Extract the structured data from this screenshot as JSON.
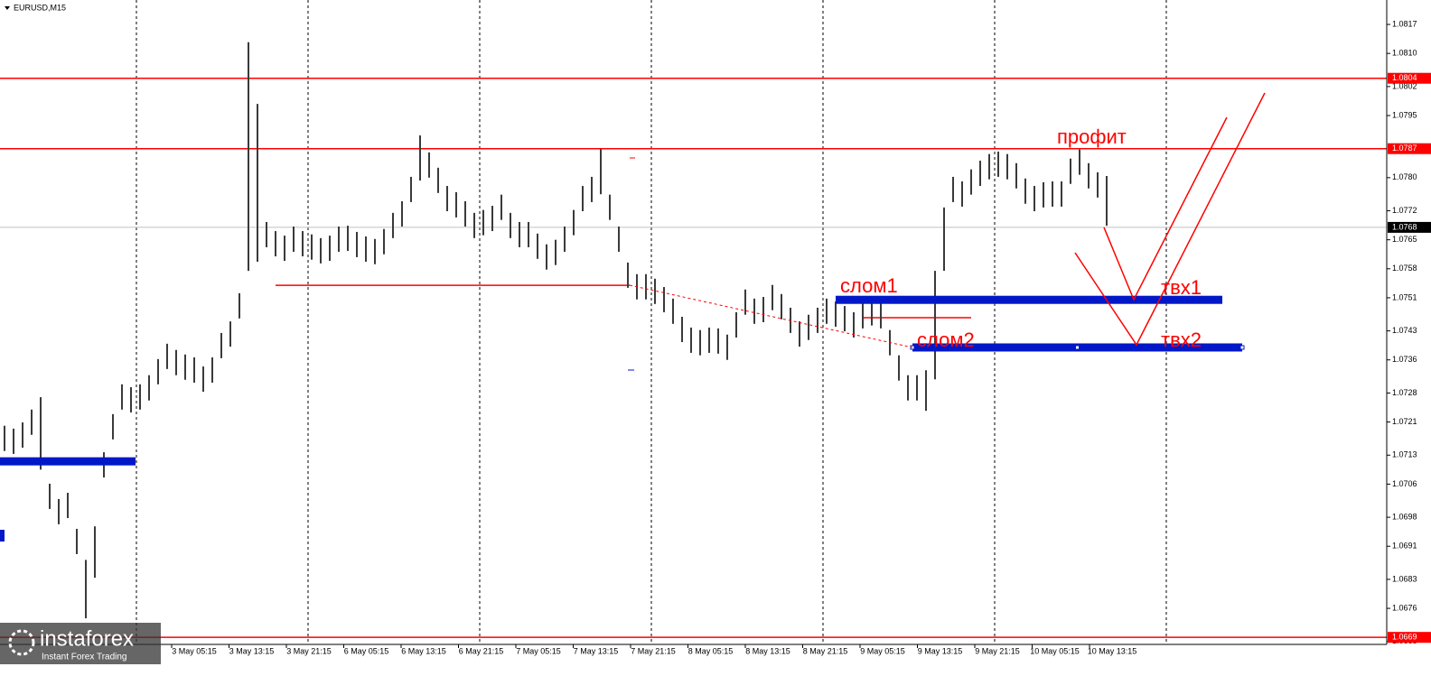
{
  "chart_data": {
    "type": "ohlc",
    "title": "EURUSD,M15",
    "categories": [
      "3 May 05:15",
      "3 May 13:15",
      "3 May 21:15",
      "6 May 05:15",
      "6 May 13:15",
      "6 May 21:15",
      "7 May 05:15",
      "7 May 13:15",
      "7 May 21:15",
      "8 May 05:15",
      "8 May 13:15",
      "8 May 21:15",
      "9 May 05:15",
      "9 May 13:15",
      "9 May 21:15",
      "10 May 05:15",
      "10 May 13:15"
    ],
    "color": "#3a3a3a",
    "highs": [
      1.07201,
      1.07194,
      1.07209,
      1.0724,
      1.0727,
      1.07061,
      1.07024,
      1.07039,
      1.06952,
      1.06877,
      1.06958,
      1.07137,
      1.07229,
      1.07301,
      1.07294,
      1.07301,
      1.07323,
      1.07362,
      1.07399,
      1.07384,
      1.07373,
      1.07366,
      1.07344,
      1.07366,
      1.07425,
      1.07453,
      1.07521,
      1.08127,
      1.07978,
      1.07693,
      1.07671,
      1.0766,
      1.07682,
      1.07671,
      1.07663,
      1.07654,
      1.0766,
      1.07682,
      1.07684,
      1.07669,
      1.07658,
      1.07652,
      1.07676,
      1.07715,
      1.07743,
      1.07802,
      1.07902,
      1.07861,
      1.07824,
      1.0778,
      1.07765,
      1.07743,
      1.07715,
      1.07722,
      1.07732,
      1.07759,
      1.07715,
      1.07693,
      1.07693,
      1.07665,
      1.07639,
      1.0765,
      1.07682,
      1.07722,
      1.0778,
      1.07802,
      1.07869,
      1.07759,
      1.07682,
      1.07595,
      1.07567,
      1.07567,
      1.07556,
      1.07536,
      1.07508,
      1.07464,
      1.07438,
      1.07432,
      1.07438,
      1.07436,
      1.07421,
      1.07475,
      1.0753,
      1.07508,
      1.07512,
      1.07541,
      1.07519,
      1.07486,
      1.07453,
      1.07469,
      1.07486,
      1.07508,
      1.07501,
      1.0749,
      1.07475,
      1.07497,
      1.07504,
      1.07497,
      1.07432,
      1.07371,
      1.07323,
      1.07323,
      1.07335,
      1.07575,
      1.07728,
      1.07802,
      1.07791,
      1.0782,
      1.07841,
      1.07857,
      1.07863,
      1.07857,
      1.07835,
      1.07798,
      1.0778,
      1.07789,
      1.07791,
      1.07791,
      1.07846,
      1.07868,
      1.07835,
      1.07813,
      1.07804
    ],
    "lows": [
      1.0714,
      1.07133,
      1.07148,
      1.07179,
      1.07095,
      1.07,
      1.06963,
      1.06978,
      1.06891,
      1.06736,
      1.06834,
      1.07076,
      1.07168,
      1.0724,
      1.07233,
      1.0724,
      1.07262,
      1.07301,
      1.07338,
      1.07323,
      1.07312,
      1.07305,
      1.07283,
      1.07305,
      1.07364,
      1.07392,
      1.0746,
      1.07575,
      1.07597,
      1.07632,
      1.0761,
      1.07599,
      1.07621,
      1.0761,
      1.07602,
      1.07593,
      1.07599,
      1.07621,
      1.07623,
      1.07608,
      1.07597,
      1.07591,
      1.07615,
      1.07654,
      1.07682,
      1.07741,
      1.07793,
      1.078,
      1.07763,
      1.07719,
      1.07704,
      1.07682,
      1.07654,
      1.07661,
      1.07671,
      1.07698,
      1.07654,
      1.07632,
      1.07632,
      1.07604,
      1.07578,
      1.07589,
      1.07621,
      1.07661,
      1.07719,
      1.07741,
      1.0776,
      1.07698,
      1.07621,
      1.07534,
      1.07506,
      1.07506,
      1.07495,
      1.07475,
      1.07447,
      1.07403,
      1.07377,
      1.07371,
      1.07377,
      1.07375,
      1.0736,
      1.07414,
      1.07469,
      1.07447,
      1.07451,
      1.0748,
      1.07458,
      1.07425,
      1.07392,
      1.07408,
      1.07425,
      1.07447,
      1.0744,
      1.07429,
      1.07414,
      1.07436,
      1.07443,
      1.07436,
      1.07371,
      1.0731,
      1.07262,
      1.07262,
      1.07237,
      1.07313,
      1.07575,
      1.07741,
      1.0773,
      1.07759,
      1.0778,
      1.07796,
      1.07802,
      1.07796,
      1.07774,
      1.07737,
      1.07719,
      1.07728,
      1.0773,
      1.0773,
      1.07785,
      1.07807,
      1.07774,
      1.07752,
      1.07684
    ],
    "ylim": [
      1.06625,
      1.08229
    ],
    "yticks": [
      1.0817,
      {
        "value": 1.081,
        "label": "1.0810"
      },
      1.0802,
      1.0795,
      {
        "value": 1.078,
        "label": "1.0780"
      },
      1.0772,
      1.0765,
      1.0758,
      1.0751,
      1.0743,
      1.0736,
      1.0728,
      1.0721,
      1.0713,
      1.0706,
      1.0698,
      1.0691,
      1.0683,
      1.0676,
      1.0668
    ],
    "levels": [
      1.0804,
      1.0787,
      1.0669
    ],
    "level_color": "#ff0000",
    "current_price": 1.0768,
    "segments": [
      1.0754,
      1.07462
    ],
    "zones": [
      1.07115,
      1.07505,
      1.0739
    ],
    "zone_color": "#0018c8",
    "annotations": [
      "профит",
      "слом1",
      "слом2",
      "твх1",
      "твх2"
    ]
  },
  "watermark": {
    "name": "instaforex",
    "tagline": "Instant Forex Trading"
  }
}
